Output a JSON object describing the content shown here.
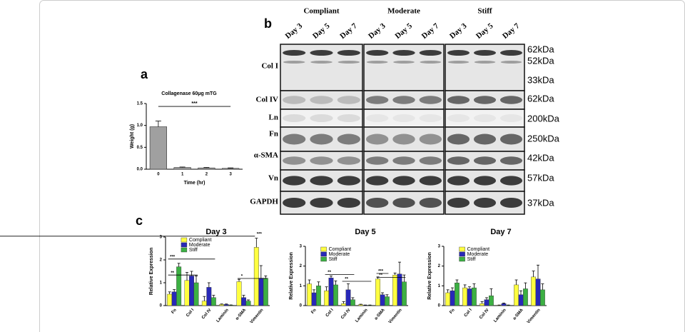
{
  "panel_labels": [
    "a",
    "b",
    "c"
  ],
  "blot": {
    "conditions": [
      "Compliant",
      "Moderate",
      "Stiff"
    ],
    "lanes": [
      "Day 3",
      "Day 5",
      "Day 7"
    ],
    "rows": [
      "Col I",
      "Col IV",
      "Ln",
      "Fn",
      "α-SMA",
      "Vn",
      "GAPDH"
    ],
    "sizes": [
      "62kDa",
      "52kDa",
      "33kDa",
      "62kDa",
      "200kDa",
      "250kDa",
      "42kDa",
      "57kDa",
      "37kDa"
    ]
  },
  "chart_data": [
    {
      "type": "bar",
      "title": "Collagenase 60μg mTG",
      "x_label": "Time (hr)",
      "y_label": "Weight (g)",
      "categories": [
        "0",
        "1",
        "2",
        "3"
      ],
      "values": [
        0.97,
        0.04,
        0.03,
        0.02
      ],
      "errors": [
        0.13,
        0.01,
        0.01,
        0.01
      ],
      "color": "#a0a0a0",
      "ylim": [
        0,
        1.5
      ],
      "yticks": [
        {
          "value": 0,
          "label": "0.0"
        },
        {
          "value": 0.5,
          "label": "0.5"
        },
        {
          "value": 1,
          "label": "1.0"
        },
        {
          "value": 1.5,
          "label": "1.5"
        }
      ],
      "annotations": [
        "***"
      ]
    },
    {
      "type": "grouped_bar",
      "title": "Day 3",
      "y_label": "Relative Expression",
      "categories": [
        "Fn",
        "Col I",
        "Col IV",
        "Laminin",
        "α-SMA",
        "Vimentin"
      ],
      "series": [
        {
          "name": "Compliant",
          "color": "#ffff40",
          "values": [
            0.5,
            1.1,
            0.2,
            0.05,
            1.05,
            2.55
          ],
          "errors": [
            0.1,
            0.35,
            0.2,
            0.02,
            0.1,
            0.4
          ]
        },
        {
          "name": "Moderate",
          "color": "#2828b8",
          "values": [
            0.6,
            1.3,
            0.8,
            0.05,
            0.35,
            1.2
          ],
          "errors": [
            0.1,
            0.2,
            0.2,
            0.02,
            0.1,
            0.55
          ]
        },
        {
          "name": "Stiff",
          "color": "#3cb043",
          "values": [
            1.7,
            1.0,
            0.35,
            0.02,
            0.2,
            1.2
          ],
          "errors": [
            0.15,
            0.3,
            0.1,
            0.01,
            0.05,
            0.1
          ]
        }
      ],
      "ylim": [
        0,
        3
      ],
      "yticks": [
        0,
        1,
        2,
        3
      ],
      "annotations": [
        "***",
        "**",
        "*",
        "***"
      ]
    },
    {
      "type": "grouped_bar",
      "title": "Day 5",
      "y_label": "Relative Expression",
      "categories": [
        "Fn",
        "Col I",
        "Col IV",
        "Laminin",
        "a-SMA",
        "Vimentin"
      ],
      "series": [
        {
          "name": "Compliant",
          "color": "#ffff40",
          "values": [
            1.1,
            0.75,
            0.1,
            0.05,
            1.35,
            1.55
          ],
          "errors": [
            0.2,
            0.2,
            0.1,
            0.02,
            0.1,
            0.1
          ]
        },
        {
          "name": "Moderate",
          "color": "#2828b8",
          "values": [
            0.65,
            1.4,
            0.8,
            0.02,
            0.55,
            1.6
          ],
          "errors": [
            0.15,
            0.1,
            0.3,
            0.01,
            0.1,
            0.6
          ]
        },
        {
          "name": "Stiff",
          "color": "#3cb043",
          "values": [
            1.0,
            1.05,
            0.3,
            0.02,
            0.45,
            1.2
          ],
          "errors": [
            0.2,
            0.2,
            0.1,
            0.01,
            0.1,
            0.35
          ]
        }
      ],
      "ylim": [
        0,
        3
      ],
      "yticks": [
        0,
        1,
        2,
        3
      ],
      "annotations": [
        "**",
        "**",
        "***",
        "**"
      ]
    },
    {
      "type": "grouped_bar",
      "title": "Day 7",
      "y_label": "Relative Expression",
      "categories": [
        "Fn",
        "Col I",
        "Col IV",
        "Laminin",
        "a-SMA",
        "Vimentin"
      ],
      "series": [
        {
          "name": "Compliant",
          "color": "#ffff40",
          "values": [
            0.65,
            0.9,
            0.1,
            0.02,
            1.05,
            1.45
          ],
          "errors": [
            0.15,
            0.15,
            0.1,
            0.01,
            0.25,
            0.3
          ]
        },
        {
          "name": "Moderate",
          "color": "#2828b8",
          "values": [
            0.75,
            0.85,
            0.3,
            0.1,
            0.55,
            1.35
          ],
          "errors": [
            0.15,
            0.1,
            0.1,
            0.03,
            0.2,
            0.7
          ]
        },
        {
          "name": "Stiff",
          "color": "#3cb043",
          "values": [
            1.15,
            0.9,
            0.5,
            0.02,
            0.85,
            0.8
          ],
          "errors": [
            0.15,
            0.2,
            0.35,
            0.01,
            0.3,
            0.3
          ]
        }
      ],
      "ylim": [
        0,
        3
      ],
      "yticks": [
        0,
        1,
        2,
        3
      ]
    }
  ]
}
